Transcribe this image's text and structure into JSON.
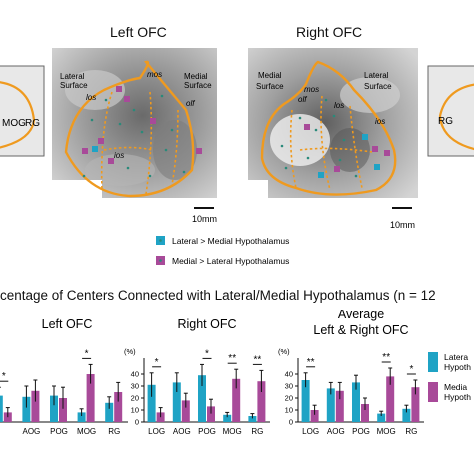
{
  "colors": {
    "lateral": "#1fa3c5",
    "medial": "#a84a99",
    "contour": "#ef9a1f"
  },
  "top": {
    "left_title": "Left OFC",
    "right_title": "Right OFC",
    "scale_left": "10mm",
    "scale_right": "10mm",
    "left_labels": {
      "lateral": "Lateral\nSurface",
      "medial": "Medial\nSurface",
      "mos": "mos",
      "los": "los",
      "olf": "olf",
      "ios": "ios"
    },
    "right_labels": {
      "medial": "Medial\nSurface",
      "lateral": "Lateral\nSurface",
      "mos": "mos",
      "los": "los",
      "olf": "olf",
      "ios": "ios"
    },
    "left_edge_labels": [
      "MOG",
      "RG"
    ],
    "right_edge_label": "RG"
  },
  "legend": {
    "lateral": "Lateral > Medial Hypothalamus",
    "medial": "Medial > Lateral Hypothalamus"
  },
  "bottom_title": "centage of Centers Connected with Lateral/Medial Hypothalamus (n = 12",
  "right_legend": {
    "lateral": "Latera",
    "lateral2": "Hypoth",
    "medial": "Media",
    "medial2": "Hypoth"
  },
  "chart_data": [
    {
      "type": "bar",
      "title": "Left OFC",
      "categories": [
        "",
        "AOG",
        "POG",
        "MOG",
        "RG"
      ],
      "ylabel": "",
      "ylim": [
        0,
        50
      ],
      "series": [
        {
          "name": "Lateral > Medial Hypothalamus",
          "values": [
            22,
            21,
            22,
            8,
            16
          ],
          "err": [
            7,
            9,
            8,
            3,
            5
          ]
        },
        {
          "name": "Medial > Lateral Hypothalamus",
          "values": [
            8,
            26,
            20,
            40,
            25
          ],
          "err": [
            4,
            9,
            9,
            8,
            8
          ]
        }
      ],
      "significance": [
        "*",
        "",
        "",
        "*",
        ""
      ]
    },
    {
      "type": "bar",
      "title": "Right OFC",
      "categories": [
        "LOG",
        "AOG",
        "POG",
        "MOG",
        "RG"
      ],
      "ylabel": "(%)",
      "yticks": [
        0,
        10,
        20,
        30,
        40
      ],
      "ylim": [
        0,
        50
      ],
      "series": [
        {
          "name": "Lateral > Medial Hypothalamus",
          "values": [
            31,
            33,
            39,
            6,
            5
          ],
          "err": [
            10,
            8,
            9,
            2,
            2
          ]
        },
        {
          "name": "Medial > Lateral Hypothalamus",
          "values": [
            8,
            18,
            13,
            36,
            34
          ],
          "err": [
            4,
            6,
            6,
            8,
            9
          ]
        }
      ],
      "significance": [
        "*",
        "",
        "*",
        "**",
        "**"
      ]
    },
    {
      "type": "bar",
      "title": "Average\nLeft & Right OFC",
      "categories": [
        "LOG",
        "AOG",
        "POG",
        "MOG",
        "RG"
      ],
      "ylabel": "(%)",
      "yticks": [
        0,
        10,
        20,
        30,
        40
      ],
      "ylim": [
        0,
        50
      ],
      "series": [
        {
          "name": "Lateral > Medial Hypothalamus",
          "values": [
            35,
            28,
            33,
            7,
            11
          ],
          "err": [
            6,
            5,
            6,
            2,
            3
          ]
        },
        {
          "name": "Medial > Lateral Hypothalamus",
          "values": [
            10,
            26,
            15,
            38,
            29
          ],
          "err": [
            4,
            7,
            5,
            7,
            6
          ]
        }
      ],
      "significance": [
        "**",
        "",
        "",
        "**",
        "*"
      ]
    }
  ]
}
